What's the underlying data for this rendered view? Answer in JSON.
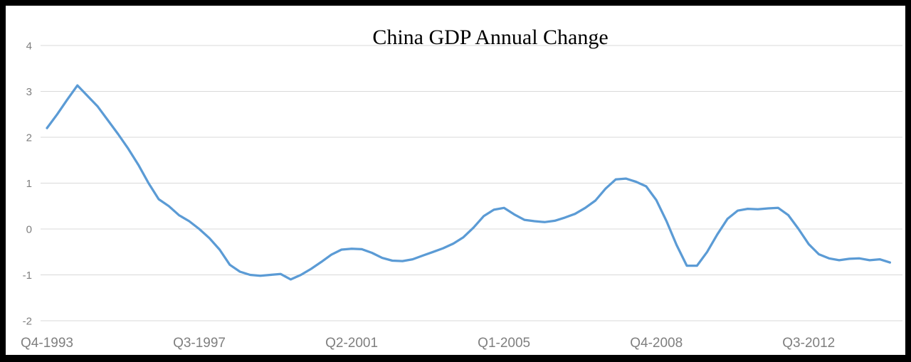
{
  "chart_data": {
    "type": "line",
    "title": "China GDP Annual Change",
    "series": [
      {
        "name": "China GDP annual change",
        "values": [
          2.2,
          2.5,
          2.82,
          3.13,
          2.9,
          2.67,
          2.37,
          2.07,
          1.75,
          1.4,
          1.0,
          0.65,
          0.5,
          0.3,
          0.17,
          0.0,
          -0.2,
          -0.45,
          -0.78,
          -0.93,
          -1.0,
          -1.02,
          -1.0,
          -0.98,
          -1.1,
          -1.0,
          -0.87,
          -0.72,
          -0.56,
          -0.45,
          -0.43,
          -0.44,
          -0.52,
          -0.63,
          -0.69,
          -0.7,
          -0.66,
          -0.58,
          -0.5,
          -0.42,
          -0.32,
          -0.18,
          0.03,
          0.28,
          0.42,
          0.46,
          0.32,
          0.2,
          0.17,
          0.15,
          0.18,
          0.25,
          0.33,
          0.46,
          0.62,
          0.88,
          1.08,
          1.1,
          1.03,
          0.93,
          0.63,
          0.17,
          -0.35,
          -0.8,
          -0.8,
          -0.5,
          -0.12,
          0.22,
          0.4,
          0.44,
          0.43,
          0.45,
          0.46,
          0.3,
          0.0,
          -0.33,
          -0.55,
          -0.64,
          -0.68,
          -0.65,
          -0.64,
          -0.68,
          -0.66,
          -0.73
        ]
      }
    ],
    "x_tick_labels": [
      "Q4-1993",
      "Q3-1997",
      "Q2-2001",
      "Q1-2005",
      "Q4-2008",
      "Q3-2012"
    ],
    "x_tick_positions": [
      0,
      15,
      30,
      45,
      60,
      75
    ],
    "x_period": "quarterly",
    "y_ticks": [
      4,
      3,
      2,
      1,
      0,
      -1,
      -2
    ],
    "ylim": [
      -2,
      4
    ],
    "grid": "horizontal",
    "legend": "none",
    "line_color": "#5B9BD5",
    "gridline_color": "#D9D9D9",
    "tick_label_color": "#7F7F7F",
    "title_color": "#000000",
    "frame_color": "#000000",
    "background_color": "#FFFFFF"
  }
}
